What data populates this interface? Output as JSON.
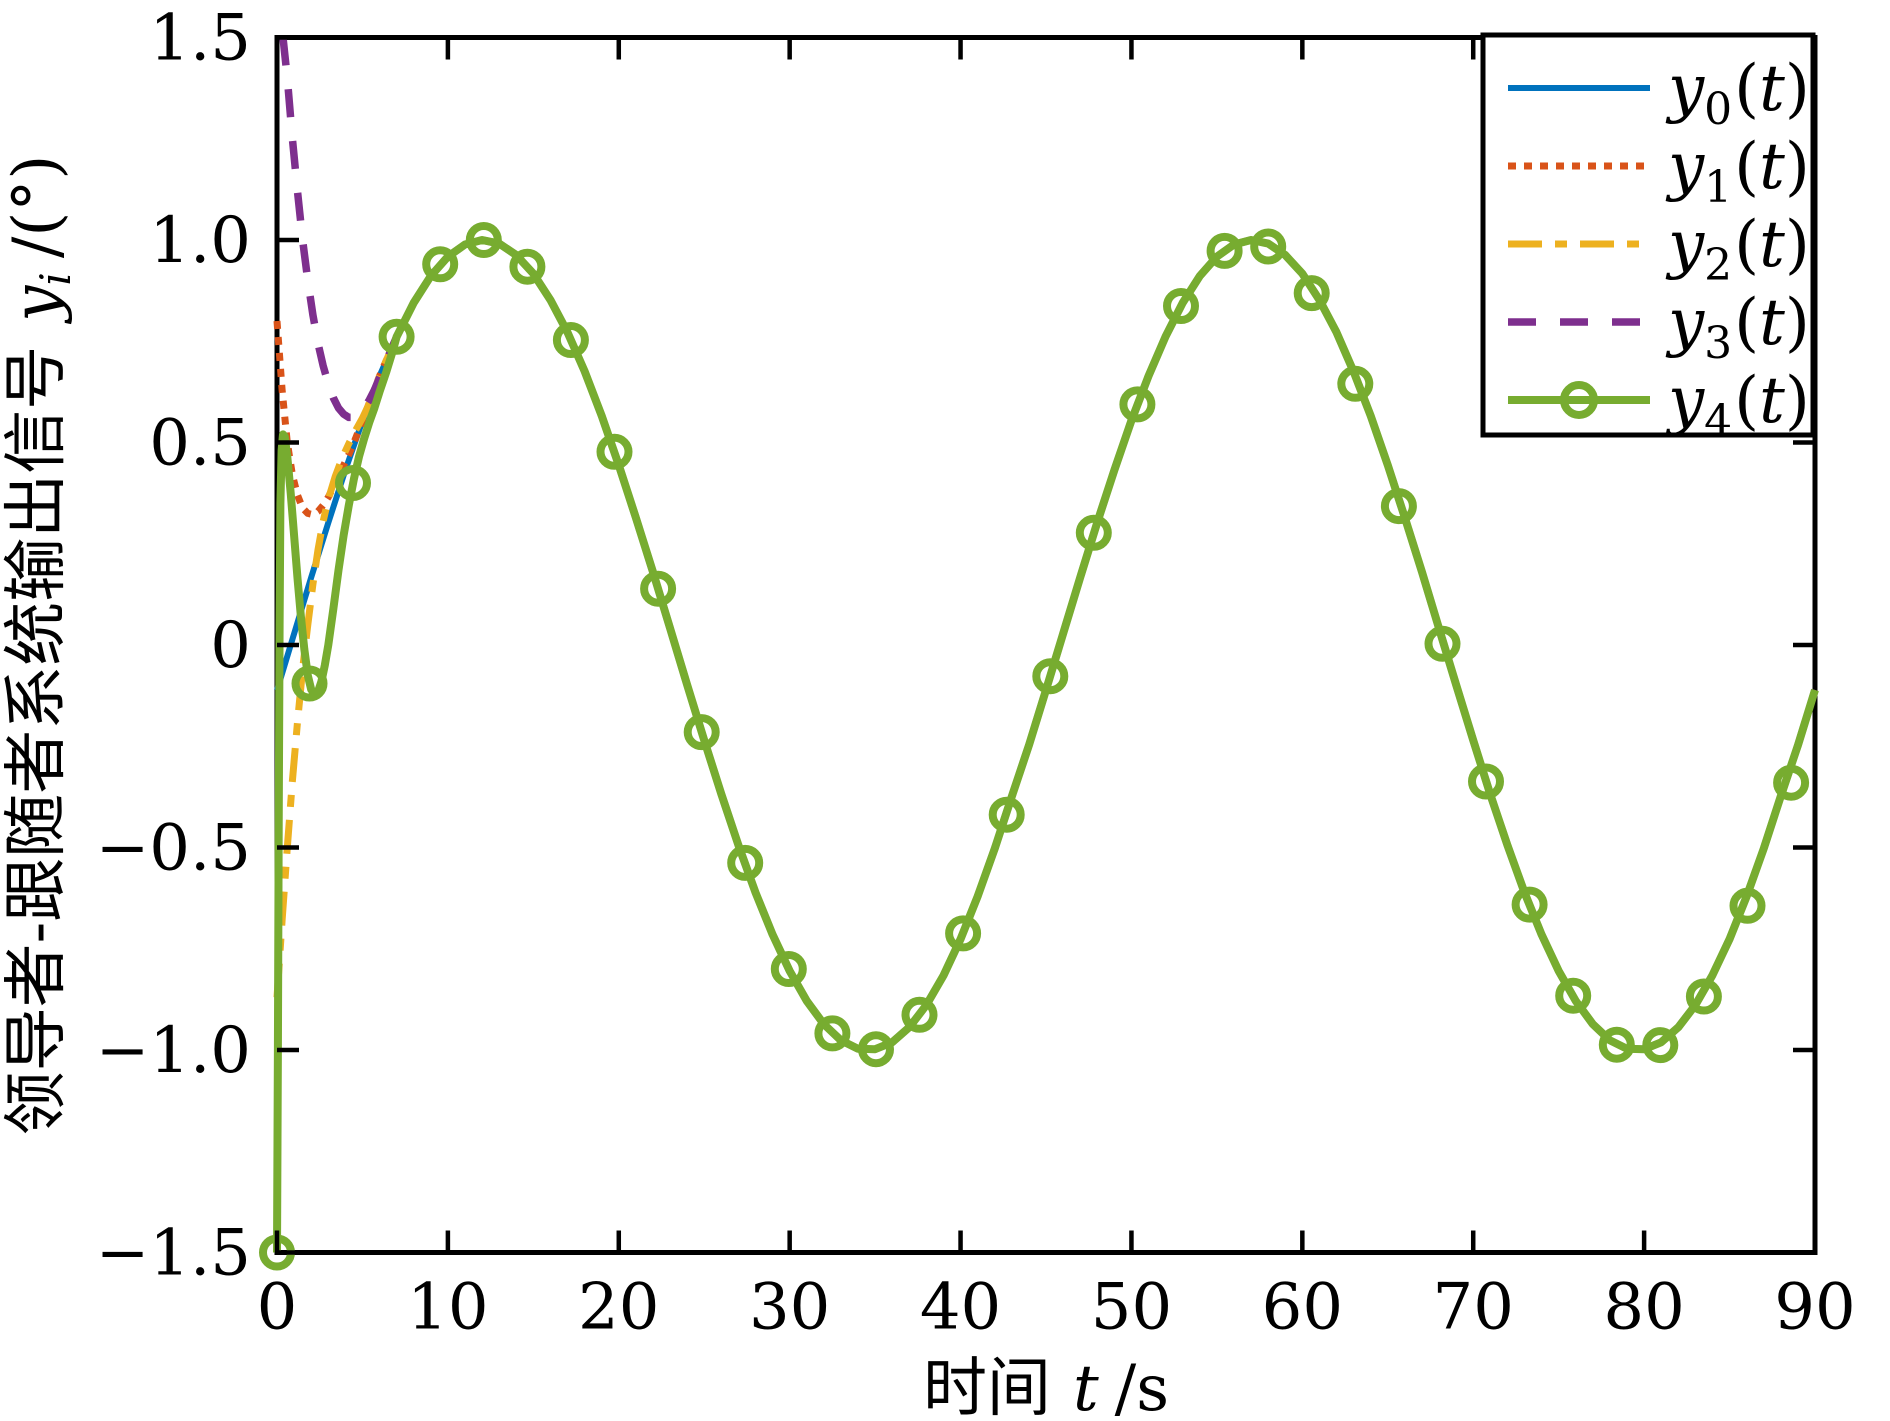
{
  "figure": {
    "background": "#ffffff",
    "frame_color": "#000000"
  },
  "chart_data": {
    "type": "line",
    "title": "",
    "xlabel": {
      "cn": "时间",
      "math": "t",
      "unit": "/s"
    },
    "ylabel": {
      "cn": "领导者-跟随者系统输出信号",
      "var": "y",
      "sub": "i",
      "unit": "/(°)"
    },
    "xlim": [
      0,
      90
    ],
    "ylim": [
      -1.5,
      1.5
    ],
    "grid": false,
    "box": true,
    "xticks": {
      "values": [
        0,
        10,
        20,
        30,
        40,
        50,
        60,
        70,
        80,
        90
      ],
      "labels": [
        "0",
        "10",
        "20",
        "30",
        "40",
        "50",
        "60",
        "70",
        "80",
        "90"
      ]
    },
    "yticks": {
      "values": [
        1.5,
        1.0,
        0.5,
        0,
        -0.5,
        -1.0,
        -1.5
      ],
      "labels": [
        "1.5",
        "1.0",
        "0.5",
        "0",
        "−0.5",
        "−1.0",
        "−1.5"
      ]
    },
    "legend": {
      "position": "top-right",
      "entries": [
        {
          "series": "y0",
          "var": "y",
          "sub": "0",
          "open": "(",
          "arg": "t",
          "close": ")"
        },
        {
          "series": "y1",
          "var": "y",
          "sub": "1",
          "open": "(",
          "arg": "t",
          "close": ")"
        },
        {
          "series": "y2",
          "var": "y",
          "sub": "2",
          "open": "(",
          "arg": "t",
          "close": ")"
        },
        {
          "series": "y3",
          "var": "y",
          "sub": "3",
          "open": "(",
          "arg": "t",
          "close": ")"
        },
        {
          "series": "y4",
          "var": "y",
          "sub": "4",
          "open": "(",
          "arg": "t",
          "close": ")"
        }
      ]
    },
    "base_curve_points": [
      [
        0,
        -0.112
      ],
      [
        1,
        0.028
      ],
      [
        2,
        0.167
      ],
      [
        3,
        0.302
      ],
      [
        4,
        0.432
      ],
      [
        5,
        0.553
      ],
      [
        6,
        0.664
      ],
      [
        7,
        0.761
      ],
      [
        8,
        0.845
      ],
      [
        9,
        0.911
      ],
      [
        10,
        0.959
      ],
      [
        11,
        0.989
      ],
      [
        12,
        1.0
      ],
      [
        13,
        0.991
      ],
      [
        14,
        0.963
      ],
      [
        15,
        0.917
      ],
      [
        16,
        0.852
      ],
      [
        17,
        0.772
      ],
      [
        18,
        0.676
      ],
      [
        19,
        0.566
      ],
      [
        20,
        0.444
      ],
      [
        21,
        0.314
      ],
      [
        22,
        0.18
      ],
      [
        23,
        0.042
      ],
      [
        24,
        -0.098
      ],
      [
        25,
        -0.235
      ],
      [
        26,
        -0.368
      ],
      [
        27,
        -0.494
      ],
      [
        28,
        -0.611
      ],
      [
        29,
        -0.715
      ],
      [
        30,
        -0.805
      ],
      [
        31,
        -0.879
      ],
      [
        32,
        -0.936
      ],
      [
        33,
        -0.976
      ],
      [
        34,
        -0.997
      ],
      [
        35,
        -0.998
      ],
      [
        36,
        -0.981
      ],
      [
        37,
        -0.944
      ],
      [
        38,
        -0.889
      ],
      [
        39,
        -0.816
      ],
      [
        40,
        -0.726
      ],
      [
        41,
        -0.621
      ],
      [
        42,
        -0.503
      ],
      [
        43,
        -0.374
      ],
      [
        44,
        -0.248
      ],
      [
        45,
        -0.111
      ],
      [
        46,
        0.028
      ],
      [
        47,
        0.167
      ],
      [
        48,
        0.303
      ],
      [
        49,
        0.432
      ],
      [
        50,
        0.554
      ],
      [
        51,
        0.664
      ],
      [
        52,
        0.762
      ],
      [
        53,
        0.845
      ],
      [
        54,
        0.911
      ],
      [
        55,
        0.959
      ],
      [
        56,
        0.989
      ],
      [
        57,
        1.0
      ],
      [
        58,
        0.991
      ],
      [
        59,
        0.963
      ],
      [
        60,
        0.917
      ],
      [
        61,
        0.852
      ],
      [
        62,
        0.772
      ],
      [
        63,
        0.675
      ],
      [
        64,
        0.566
      ],
      [
        65,
        0.444
      ],
      [
        66,
        0.314
      ],
      [
        67,
        0.18
      ],
      [
        68,
        0.041
      ],
      [
        69,
        -0.098
      ],
      [
        70,
        -0.235
      ],
      [
        71,
        -0.369
      ],
      [
        72,
        -0.494
      ],
      [
        73,
        -0.611
      ],
      [
        74,
        -0.715
      ],
      [
        75,
        -0.805
      ],
      [
        76,
        -0.879
      ],
      [
        77,
        -0.936
      ],
      [
        78,
        -0.976
      ],
      [
        79,
        -0.997
      ],
      [
        80,
        -0.998
      ],
      [
        81,
        -0.981
      ],
      [
        82,
        -0.944
      ],
      [
        83,
        -0.889
      ],
      [
        84,
        -0.815
      ],
      [
        85,
        -0.726
      ],
      [
        86,
        -0.621
      ],
      [
        87,
        -0.503
      ],
      [
        88,
        -0.373
      ],
      [
        89,
        -0.248
      ],
      [
        90,
        -0.111
      ]
    ],
    "series": [
      {
        "id": "y0",
        "label": "y0(t)",
        "color": "#0072BD",
        "line_style": "solid",
        "line_width": 6,
        "marker": "none",
        "merge_t": 0,
        "transient_points": []
      },
      {
        "id": "y1",
        "label": "y1(t)",
        "color": "#D95319",
        "line_style": "dotted",
        "line_width": 7,
        "marker": "none",
        "merge_t": 5,
        "transient_points": [
          [
            0,
            0.8
          ],
          [
            0.3,
            0.63
          ],
          [
            0.6,
            0.5
          ],
          [
            0.9,
            0.42
          ],
          [
            1.2,
            0.37
          ],
          [
            1.5,
            0.338
          ],
          [
            1.8,
            0.325
          ],
          [
            2.1,
            0.322
          ],
          [
            2.4,
            0.33
          ],
          [
            2.7,
            0.345
          ],
          [
            3.0,
            0.365
          ],
          [
            3.4,
            0.4
          ],
          [
            3.8,
            0.435
          ],
          [
            4.2,
            0.47
          ],
          [
            4.6,
            0.51
          ]
        ]
      },
      {
        "id": "y2",
        "label": "y2(t)",
        "color": "#EDB120",
        "line_style": "dashdot",
        "line_width": 7,
        "marker": "none",
        "merge_t": 6,
        "transient_points": [
          [
            0,
            -0.87
          ],
          [
            0.3,
            -0.68
          ],
          [
            0.6,
            -0.5
          ],
          [
            0.9,
            -0.335
          ],
          [
            1.2,
            -0.19
          ],
          [
            1.5,
            -0.06
          ],
          [
            1.8,
            0.05
          ],
          [
            2.1,
            0.15
          ],
          [
            2.4,
            0.235
          ],
          [
            2.7,
            0.305
          ],
          [
            3.0,
            0.36
          ],
          [
            3.4,
            0.415
          ],
          [
            3.8,
            0.46
          ],
          [
            4.2,
            0.497
          ],
          [
            4.6,
            0.53
          ],
          [
            5.0,
            0.56
          ],
          [
            5.5,
            0.605
          ]
        ]
      },
      {
        "id": "y3",
        "label": "y3(t)",
        "color": "#7E2F8E",
        "line_style": "dashed",
        "line_width": 7.5,
        "marker": "none",
        "merge_t": 7,
        "transient_points": [
          [
            0.35,
            1.5
          ],
          [
            0.6,
            1.4
          ],
          [
            0.9,
            1.25
          ],
          [
            1.2,
            1.12
          ],
          [
            1.5,
            1.0
          ],
          [
            1.8,
            0.9
          ],
          [
            2.1,
            0.815
          ],
          [
            2.4,
            0.745
          ],
          [
            2.7,
            0.69
          ],
          [
            3.0,
            0.645
          ],
          [
            3.3,
            0.61
          ],
          [
            3.6,
            0.585
          ],
          [
            3.9,
            0.57
          ],
          [
            4.2,
            0.562
          ],
          [
            4.5,
            0.562
          ],
          [
            4.8,
            0.57
          ],
          [
            5.1,
            0.585
          ],
          [
            5.4,
            0.605
          ],
          [
            5.7,
            0.63
          ],
          [
            6.0,
            0.66
          ],
          [
            6.3,
            0.69
          ],
          [
            6.6,
            0.722
          ]
        ]
      },
      {
        "id": "y4",
        "label": "y4(t)",
        "color": "#77AC30",
        "line_style": "solid",
        "line_width": 8,
        "marker": "circle",
        "merge_t": 7,
        "transient_points": [
          [
            0,
            -1.5
          ],
          [
            0.05,
            -1.0
          ],
          [
            0.1,
            -0.45
          ],
          [
            0.15,
            0.05
          ],
          [
            0.2,
            0.35
          ],
          [
            0.27,
            0.48
          ],
          [
            0.35,
            0.52
          ],
          [
            0.45,
            0.515
          ],
          [
            0.6,
            0.465
          ],
          [
            0.8,
            0.375
          ],
          [
            1.0,
            0.27
          ],
          [
            1.2,
            0.165
          ],
          [
            1.4,
            0.07
          ],
          [
            1.6,
            -0.01
          ],
          [
            1.8,
            -0.075
          ],
          [
            2.0,
            -0.11
          ],
          [
            2.2,
            -0.122
          ],
          [
            2.4,
            -0.115
          ],
          [
            2.6,
            -0.09
          ],
          [
            2.8,
            -0.05
          ],
          [
            3.0,
            0.0
          ],
          [
            3.3,
            0.09
          ],
          [
            3.6,
            0.185
          ],
          [
            3.9,
            0.27
          ],
          [
            4.2,
            0.345
          ],
          [
            4.5,
            0.41
          ],
          [
            4.8,
            0.465
          ],
          [
            5.1,
            0.51
          ],
          [
            5.4,
            0.55
          ],
          [
            5.7,
            0.585
          ],
          [
            6.0,
            0.625
          ],
          [
            6.4,
            0.675
          ],
          [
            6.8,
            0.73
          ]
        ],
        "marker_points": [
          [
            0,
            -1.5
          ],
          [
            1.9,
            -0.095
          ],
          [
            4.45,
            0.4
          ],
          [
            7.0,
            0.761
          ],
          [
            9.55,
            0.94
          ],
          [
            12.1,
            1.0
          ],
          [
            14.65,
            0.934
          ],
          [
            17.2,
            0.753
          ],
          [
            19.75,
            0.477
          ],
          [
            22.3,
            0.139
          ],
          [
            24.85,
            -0.215
          ],
          [
            27.4,
            -0.538
          ],
          [
            29.95,
            -0.8
          ],
          [
            32.5,
            -0.959
          ],
          [
            35.05,
            -0.998
          ],
          [
            37.6,
            -0.913
          ],
          [
            40.15,
            -0.712
          ],
          [
            42.7,
            -0.419
          ],
          [
            45.25,
            -0.077
          ],
          [
            47.8,
            0.277
          ],
          [
            50.35,
            0.594
          ],
          [
            52.9,
            0.837
          ],
          [
            55.45,
            0.973
          ],
          [
            58.0,
            0.984
          ],
          [
            60.55,
            0.869
          ],
          [
            63.1,
            0.645
          ],
          [
            65.65,
            0.343
          ],
          [
            68.2,
            0.003
          ],
          [
            70.75,
            -0.337
          ],
          [
            73.3,
            -0.641
          ],
          [
            75.85,
            -0.866
          ],
          [
            78.4,
            -0.987
          ],
          [
            80.95,
            -0.988
          ],
          [
            83.5,
            -0.868
          ],
          [
            86.05,
            -0.644
          ],
          [
            88.6,
            -0.34
          ]
        ]
      }
    ]
  }
}
